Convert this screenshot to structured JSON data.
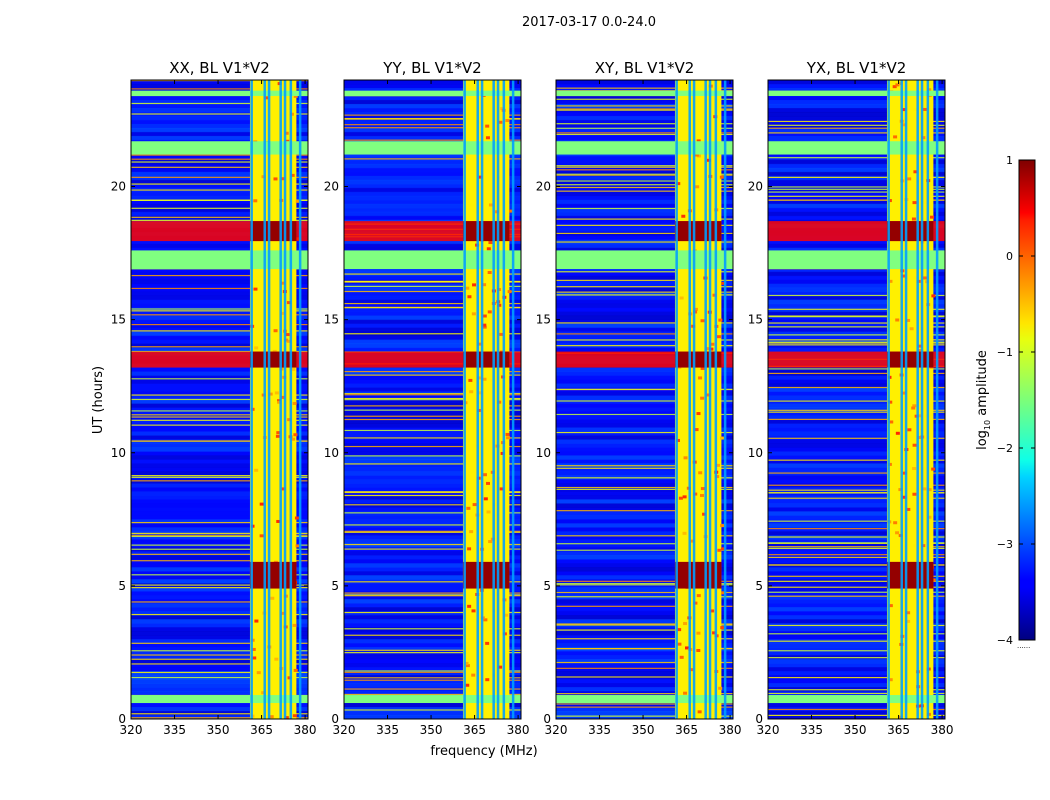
{
  "suptitle": "2017-03-17 0.0-24.0",
  "chart_data": {
    "type": "heatmap",
    "title": "2017-03-17 0.0-24.0",
    "xlabel": "frequency (MHz)",
    "ylabel": "UT (hours)",
    "xlim": [
      320,
      381
    ],
    "ylim": [
      0,
      24
    ],
    "xticks": [
      320,
      335,
      350,
      365,
      380
    ],
    "yticks": [
      0,
      5,
      10,
      15,
      20
    ],
    "colorbar": {
      "label": "log",
      "label_sub": "10",
      "label_rest": " amplitude",
      "range": [
        -4,
        1
      ],
      "ticks": [
        "1",
        "0",
        "−1",
        "−2",
        "−3",
        "−4"
      ],
      "tick_values": [
        1,
        0,
        -1,
        -2,
        -3,
        -4
      ],
      "colormap": "jet",
      "extra_note": "......"
    },
    "panels": [
      {
        "title": "XX, BL V1*V2",
        "polarization": "XX",
        "cross": false
      },
      {
        "title": "YY, BL V1*V2",
        "polarization": "YY",
        "cross": false
      },
      {
        "title": "XY, BL V1*V2",
        "polarization": "XY",
        "cross": true
      },
      {
        "title": "YX, BL V1*V2",
        "polarization": "YX",
        "cross": true
      }
    ],
    "features": {
      "rfi_band_mhz": [
        361,
        377
      ],
      "rfi_columns_mhz": [
        361.5,
        366,
        367.5,
        371.5,
        373,
        375,
        378.2
      ],
      "strong_rows_hours": [
        [
          13.2,
          13.8
        ],
        [
          17.95,
          18.7
        ],
        [
          4.9,
          5.9
        ]
      ],
      "flagged_rows_hours": [
        [
          16.9,
          17.6
        ],
        [
          21.2,
          21.7
        ],
        [
          0.6,
          0.9
        ],
        [
          23.4,
          23.6
        ]
      ],
      "background_log_amplitude": -3.3,
      "band_log_amplitude": -0.8,
      "peak_log_amplitude": 0.9
    }
  }
}
